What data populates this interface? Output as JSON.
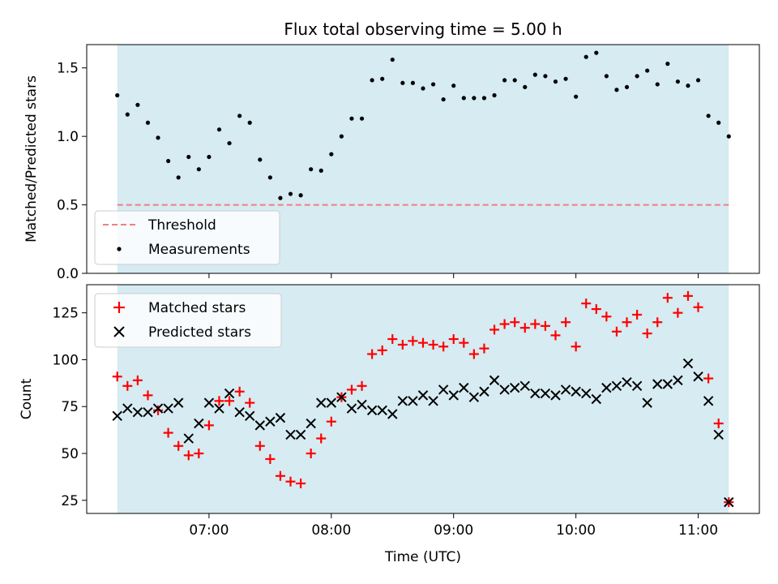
{
  "chart_data": [
    {
      "type": "scatter",
      "title": "Flux total observing time = 5.00 h",
      "xlabel": "",
      "ylabel": "Matched/Predicted stars",
      "ylim": [
        0,
        1.67
      ],
      "yticks": [
        "0.0",
        "0.5",
        "1.0",
        "1.5"
      ],
      "shaded_span": {
        "start": "06:15",
        "end": "11:15",
        "color": "#add8e6"
      },
      "threshold": {
        "value": 0.5,
        "color": "#f08080"
      },
      "legend": {
        "position": "lower-left",
        "entries": [
          "Threshold",
          "Measurements"
        ]
      },
      "series": [
        {
          "name": "Measurements",
          "marker": "dot",
          "color": "#000000",
          "x": [
            "06:15",
            "06:20",
            "06:25",
            "06:30",
            "06:35",
            "06:40",
            "06:45",
            "06:50",
            "06:55",
            "07:00",
            "07:05",
            "07:10",
            "07:15",
            "07:20",
            "07:25",
            "07:30",
            "07:35",
            "07:40",
            "07:45",
            "07:50",
            "07:55",
            "08:00",
            "08:05",
            "08:10",
            "08:15",
            "08:20",
            "08:25",
            "08:30",
            "08:35",
            "08:40",
            "08:45",
            "08:50",
            "08:55",
            "09:00",
            "09:05",
            "09:10",
            "09:15",
            "09:20",
            "09:25",
            "09:30",
            "09:35",
            "09:40",
            "09:45",
            "09:50",
            "09:55",
            "10:00",
            "10:05",
            "10:10",
            "10:15",
            "10:20",
            "10:25",
            "10:30",
            "10:35",
            "10:40",
            "10:45",
            "10:50",
            "10:55",
            "11:00",
            "11:05",
            "11:10",
            "11:15"
          ],
          "y": [
            1.3,
            1.16,
            1.23,
            1.1,
            0.99,
            0.82,
            0.7,
            0.85,
            0.76,
            0.85,
            1.05,
            0.95,
            1.15,
            1.1,
            0.83,
            0.7,
            0.55,
            0.58,
            0.57,
            0.76,
            0.75,
            0.87,
            1.0,
            1.13,
            1.13,
            1.41,
            1.42,
            1.56,
            1.39,
            1.39,
            1.35,
            1.38,
            1.27,
            1.37,
            1.28,
            1.28,
            1.28,
            1.3,
            1.41,
            1.41,
            1.36,
            1.45,
            1.44,
            1.4,
            1.42,
            1.29,
            1.58,
            1.61,
            1.44,
            1.34,
            1.36,
            1.44,
            1.48,
            1.38,
            1.53,
            1.4,
            1.37,
            1.41,
            1.15,
            1.1,
            1.0
          ]
        }
      ]
    },
    {
      "type": "scatter",
      "title": "",
      "xlabel": "Time (UTC)",
      "ylabel": "Count",
      "ylim": [
        18,
        140
      ],
      "yticks": [
        "25",
        "50",
        "75",
        "100",
        "125"
      ],
      "xticks": [
        "07:00",
        "08:00",
        "09:00",
        "10:00",
        "11:00"
      ],
      "xlim": [
        "06:00",
        "11:30"
      ],
      "shaded_span": {
        "start": "06:15",
        "end": "11:15",
        "color": "#add8e6"
      },
      "legend": {
        "position": "upper-left",
        "entries": [
          "Matched stars",
          "Predicted stars"
        ]
      },
      "series": [
        {
          "name": "Matched stars",
          "marker": "plus",
          "color": "#ff0000",
          "x": [
            "06:15",
            "06:20",
            "06:25",
            "06:30",
            "06:35",
            "06:40",
            "06:45",
            "06:50",
            "06:55",
            "07:00",
            "07:05",
            "07:10",
            "07:15",
            "07:20",
            "07:25",
            "07:30",
            "07:35",
            "07:40",
            "07:45",
            "07:50",
            "07:55",
            "08:00",
            "08:05",
            "08:10",
            "08:15",
            "08:20",
            "08:25",
            "08:30",
            "08:35",
            "08:40",
            "08:45",
            "08:50",
            "08:55",
            "09:00",
            "09:05",
            "09:10",
            "09:15",
            "09:20",
            "09:25",
            "09:30",
            "09:35",
            "09:40",
            "09:45",
            "09:50",
            "09:55",
            "10:00",
            "10:05",
            "10:10",
            "10:15",
            "10:20",
            "10:25",
            "10:30",
            "10:35",
            "10:40",
            "10:45",
            "10:50",
            "10:55",
            "11:00",
            "11:05",
            "11:10",
            "11:15"
          ],
          "y": [
            91,
            86,
            89,
            81,
            73,
            61,
            54,
            49,
            50,
            65,
            78,
            78,
            83,
            77,
            54,
            47,
            38,
            35,
            34,
            50,
            58,
            67,
            80,
            84,
            86,
            103,
            105,
            111,
            108,
            110,
            109,
            108,
            107,
            111,
            109,
            103,
            106,
            116,
            119,
            120,
            117,
            119,
            118,
            113,
            120,
            107,
            130,
            127,
            123,
            115,
            120,
            124,
            114,
            120,
            133,
            125,
            134,
            128,
            90,
            66,
            24
          ]
        },
        {
          "name": "Predicted stars",
          "marker": "x",
          "color": "#000000",
          "x": [
            "06:15",
            "06:20",
            "06:25",
            "06:30",
            "06:35",
            "06:40",
            "06:45",
            "06:50",
            "06:55",
            "07:00",
            "07:05",
            "07:10",
            "07:15",
            "07:20",
            "07:25",
            "07:30",
            "07:35",
            "07:40",
            "07:45",
            "07:50",
            "07:55",
            "08:00",
            "08:05",
            "08:10",
            "08:15",
            "08:20",
            "08:25",
            "08:30",
            "08:35",
            "08:40",
            "08:45",
            "08:50",
            "08:55",
            "09:00",
            "09:05",
            "09:10",
            "09:15",
            "09:20",
            "09:25",
            "09:30",
            "09:35",
            "09:40",
            "09:45",
            "09:50",
            "09:55",
            "10:00",
            "10:05",
            "10:10",
            "10:15",
            "10:20",
            "10:25",
            "10:30",
            "10:35",
            "10:40",
            "10:45",
            "10:50",
            "10:55",
            "11:00",
            "11:05",
            "11:10",
            "11:15"
          ],
          "y": [
            70,
            74,
            72,
            72,
            74,
            74,
            77,
            58,
            66,
            77,
            74,
            82,
            72,
            70,
            65,
            67,
            69,
            60,
            60,
            66,
            77,
            77,
            80,
            74,
            76,
            73,
            73,
            71,
            78,
            78,
            81,
            78,
            84,
            81,
            85,
            80,
            83,
            89,
            84,
            85,
            86,
            82,
            82,
            81,
            84,
            83,
            82,
            79,
            85,
            86,
            88,
            86,
            77,
            87,
            87,
            89,
            98,
            91,
            78,
            60,
            24
          ]
        }
      ]
    }
  ]
}
